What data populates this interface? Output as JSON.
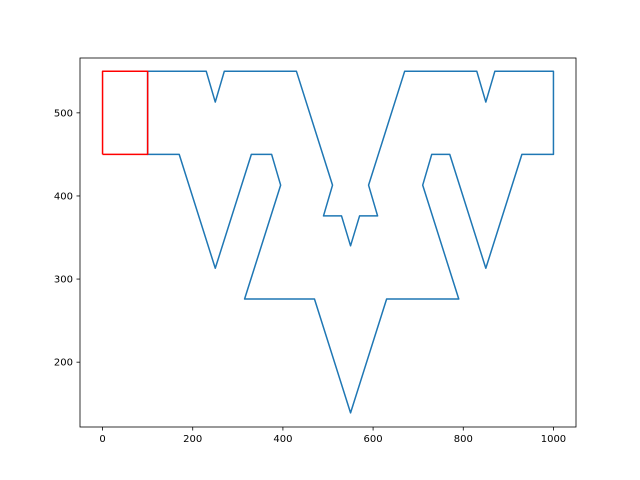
{
  "chart_data": {
    "type": "line",
    "title": "",
    "xlabel": "",
    "ylabel": "",
    "xlim": [
      -50,
      1050
    ],
    "ylim": [
      122,
      566
    ],
    "xticks": [
      0,
      200,
      400,
      600,
      800,
      1000
    ],
    "xtick_labels": [
      "0",
      "200",
      "400",
      "600",
      "800",
      "1000"
    ],
    "yticks": [
      200,
      300,
      400,
      500
    ],
    "ytick_labels": [
      "200",
      "300",
      "400",
      "500"
    ],
    "grid": false,
    "legend": "none",
    "series": [
      {
        "color": "#1f77b4",
        "points": [
          [
            100,
            550
          ],
          [
            230,
            550
          ],
          [
            250,
            513
          ],
          [
            270,
            550
          ],
          [
            430,
            550
          ],
          [
            510,
            413
          ],
          [
            490,
            376
          ],
          [
            530,
            376
          ],
          [
            550,
            340
          ],
          [
            570,
            376
          ],
          [
            610,
            376
          ],
          [
            590,
            413
          ],
          [
            670,
            550
          ],
          [
            830,
            550
          ],
          [
            850,
            513
          ],
          [
            870,
            550
          ],
          [
            1000,
            550
          ],
          [
            1000,
            450
          ],
          [
            930,
            450
          ],
          [
            850,
            313
          ],
          [
            770,
            450
          ],
          [
            730,
            450
          ],
          [
            710,
            413
          ],
          [
            790,
            276
          ],
          [
            630,
            276
          ],
          [
            550,
            139
          ],
          [
            470,
            276
          ],
          [
            315,
            276
          ],
          [
            395,
            413
          ],
          [
            375,
            450
          ],
          [
            330,
            450
          ],
          [
            250,
            313
          ],
          [
            170,
            450
          ],
          [
            100,
            450
          ],
          [
            100,
            550
          ]
        ]
      },
      {
        "color": "#ff0000",
        "points": [
          [
            0,
            450
          ],
          [
            100,
            450
          ],
          [
            100,
            550
          ],
          [
            0,
            550
          ],
          [
            0,
            450
          ]
        ]
      }
    ]
  }
}
